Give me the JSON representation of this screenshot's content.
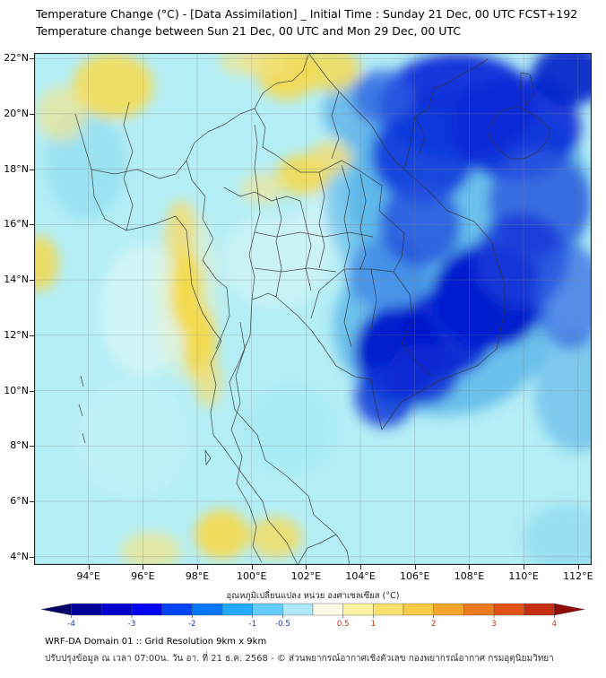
{
  "title": {
    "line1": "Temperature Change (°C) - [Data Assimilation] _ Initial Time : Sunday 21 Dec, 00 UTC FCST+192",
    "line2": "Temperature change between Sun 21 Dec, 00 UTC and Mon 29 Dec, 00 UTC"
  },
  "map": {
    "lat_ticks": [
      "22°N",
      "20°N",
      "18°N",
      "16°N",
      "14°N",
      "12°N",
      "10°N",
      "8°N",
      "6°N",
      "4°N"
    ],
    "lat_values": [
      22,
      20,
      18,
      16,
      14,
      12,
      10,
      8,
      6,
      4
    ],
    "lon_ticks": [
      "94°E",
      "96°E",
      "98°E",
      "100°E",
      "102°E",
      "104°E",
      "106°E",
      "108°E",
      "110°E",
      "112°E"
    ],
    "lon_values": [
      94,
      96,
      98,
      100,
      102,
      104,
      106,
      108,
      110,
      112
    ],
    "lon_range": [
      92.0,
      112.5
    ],
    "lat_range": [
      3.7,
      22.2
    ],
    "background_color": "#b4eef6",
    "grid_color": "rgba(130,130,130,0.38)",
    "border_color": "#222222",
    "regions": [
      {
        "lon": 93.9,
        "lat": 18.2,
        "rx": 1.5,
        "ry": 2.0,
        "color": "#93def2",
        "op": 0.75
      },
      {
        "lon": 100.9,
        "lat": 14.7,
        "rx": 2.0,
        "ry": 1.7,
        "color": "#d2f5f7",
        "op": 0.7
      },
      {
        "lon": 96.0,
        "lat": 12.9,
        "rx": 1.6,
        "ry": 2.4,
        "color": "#d8f7f8",
        "op": 0.75
      },
      {
        "lon": 95.6,
        "lat": 8.3,
        "rx": 2.2,
        "ry": 2.2,
        "color": "#c4f2f6",
        "op": 0.6
      },
      {
        "lon": 102.9,
        "lat": 16.2,
        "rx": 1.2,
        "ry": 1.0,
        "color": "#daf7f8",
        "op": 0.55
      },
      {
        "lon": 101.4,
        "lat": 8.6,
        "rx": 1.7,
        "ry": 1.6,
        "color": "#a2e9f4",
        "op": 0.6
      },
      {
        "lon": 111.6,
        "lat": 4.6,
        "rx": 1.6,
        "ry": 1.3,
        "color": "#8ed9f0",
        "op": 0.7
      },
      {
        "lon": 112.0,
        "lat": 10.0,
        "rx": 1.6,
        "ry": 2.2,
        "color": "#62b5ea",
        "op": 0.65
      },
      {
        "lon": 104.4,
        "lat": 16.9,
        "rx": 1.7,
        "ry": 2.6,
        "color": "#6fc2ec",
        "op": 0.8
      },
      {
        "lon": 103.9,
        "lat": 20.1,
        "rx": 1.3,
        "ry": 1.2,
        "color": "#5cb0e8",
        "op": 0.8
      },
      {
        "lon": 108.0,
        "lat": 17.0,
        "rx": 4.5,
        "ry": 4.0,
        "color": "#58b4e8",
        "op": 0.8
      },
      {
        "lon": 107.0,
        "lat": 12.3,
        "rx": 4.0,
        "ry": 3.2,
        "color": "#58b4e8",
        "op": 0.8
      },
      {
        "lon": 107.6,
        "lat": 20.3,
        "rx": 2.9,
        "ry": 1.9,
        "color": "#0a2ad8",
        "op": 0.95
      },
      {
        "lon": 106.3,
        "lat": 18.5,
        "rx": 1.9,
        "ry": 1.7,
        "color": "#1038dc",
        "op": 0.9
      },
      {
        "lon": 109.7,
        "lat": 19.5,
        "rx": 2.4,
        "ry": 1.9,
        "color": "#0a2ad8",
        "op": 0.9
      },
      {
        "lon": 111.7,
        "lat": 21.4,
        "rx": 1.4,
        "ry": 1.1,
        "color": "#0020c8",
        "op": 0.9
      },
      {
        "lon": 104.8,
        "lat": 20.6,
        "rx": 1.1,
        "ry": 1.0,
        "color": "#2e62e2",
        "op": 0.75
      },
      {
        "lon": 110.6,
        "lat": 16.8,
        "rx": 1.9,
        "ry": 1.9,
        "color": "#2a58e0",
        "op": 0.8
      },
      {
        "lon": 108.7,
        "lat": 13.4,
        "rx": 2.1,
        "ry": 1.9,
        "color": "#0018cc",
        "op": 0.95
      },
      {
        "lon": 107.2,
        "lat": 12.1,
        "rx": 1.7,
        "ry": 1.6,
        "color": "#001ed0",
        "op": 0.9
      },
      {
        "lon": 109.9,
        "lat": 14.7,
        "rx": 1.7,
        "ry": 1.7,
        "color": "#1638d8",
        "op": 0.85
      },
      {
        "lon": 111.7,
        "lat": 13.4,
        "rx": 1.3,
        "ry": 1.9,
        "color": "#2f63e2",
        "op": 0.7
      },
      {
        "lon": 105.4,
        "lat": 11.4,
        "rx": 1.6,
        "ry": 1.7,
        "color": "#0018cc",
        "op": 0.95
      },
      {
        "lon": 104.9,
        "lat": 9.8,
        "rx": 1.1,
        "ry": 1.1,
        "color": "#1136d8",
        "op": 0.85
      },
      {
        "lon": 106.3,
        "lat": 10.6,
        "rx": 1.3,
        "ry": 1.1,
        "color": "#0c2cd4",
        "op": 0.85
      },
      {
        "lon": 105.0,
        "lat": 14.2,
        "rx": 1.5,
        "ry": 1.3,
        "color": "#3f86e6",
        "op": 0.75
      },
      {
        "lon": 106.2,
        "lat": 16.0,
        "rx": 1.5,
        "ry": 1.5,
        "color": "#2450de",
        "op": 0.8
      },
      {
        "lon": 97.6,
        "lat": 13.5,
        "rx": 1.2,
        "ry": 3.2,
        "color": "#ecf2c8",
        "op": 0.5
      },
      {
        "lon": 94.9,
        "lat": 21.0,
        "rx": 1.5,
        "ry": 1.2,
        "color": "#f5dc55",
        "op": 0.9
      },
      {
        "lon": 93.0,
        "lat": 20.0,
        "rx": 0.9,
        "ry": 1.0,
        "color": "#f0e48e",
        "op": 0.7
      },
      {
        "lon": 101.3,
        "lat": 21.5,
        "rx": 1.1,
        "ry": 1.0,
        "color": "#f5d94e",
        "op": 0.9
      },
      {
        "lon": 100.5,
        "lat": 21.9,
        "rx": 0.8,
        "ry": 0.6,
        "color": "#f1e07c",
        "op": 0.8
      },
      {
        "lon": 102.9,
        "lat": 21.6,
        "rx": 1.1,
        "ry": 0.8,
        "color": "#f3da55",
        "op": 0.85
      },
      {
        "lon": 99.6,
        "lat": 21.9,
        "rx": 0.8,
        "ry": 0.5,
        "color": "#f2e58c",
        "op": 0.7
      },
      {
        "lon": 101.9,
        "lat": 17.8,
        "rx": 1.0,
        "ry": 0.75,
        "color": "#f5d94e",
        "op": 0.88
      },
      {
        "lon": 102.9,
        "lat": 18.4,
        "rx": 0.8,
        "ry": 0.6,
        "color": "#f2dd70",
        "op": 0.8
      },
      {
        "lon": 100.4,
        "lat": 17.3,
        "rx": 0.8,
        "ry": 0.55,
        "color": "#f2e596",
        "op": 0.7
      },
      {
        "lon": 97.4,
        "lat": 15.7,
        "rx": 0.55,
        "ry": 1.2,
        "color": "#f0dc72",
        "op": 0.85
      },
      {
        "lon": 97.6,
        "lat": 13.6,
        "rx": 0.6,
        "ry": 1.5,
        "color": "#f6d947",
        "op": 0.95
      },
      {
        "lon": 98.1,
        "lat": 11.7,
        "rx": 0.6,
        "ry": 1.4,
        "color": "#f6d947",
        "op": 0.95
      },
      {
        "lon": 98.4,
        "lat": 10.3,
        "rx": 0.5,
        "ry": 0.9,
        "color": "#efdf7e",
        "op": 0.8
      },
      {
        "lon": 92.2,
        "lat": 14.6,
        "rx": 0.7,
        "ry": 1.0,
        "color": "#f4d84e",
        "op": 0.85
      },
      {
        "lon": 98.9,
        "lat": 4.8,
        "rx": 1.0,
        "ry": 0.9,
        "color": "#f5d94e",
        "op": 0.92
      },
      {
        "lon": 100.9,
        "lat": 4.7,
        "rx": 0.95,
        "ry": 0.75,
        "color": "#f3dc62",
        "op": 0.85
      },
      {
        "lon": 96.3,
        "lat": 4.2,
        "rx": 1.1,
        "ry": 0.7,
        "color": "#f0e48c",
        "op": 0.75
      }
    ]
  },
  "colorbar": {
    "title": "อุณหภูมิเปลี่ยนแปลง หน่วย องศาเซลเซียส (°C)",
    "min": -4.5,
    "max": 4.5,
    "segments": [
      {
        "from": -4.5,
        "to": -4.0,
        "color": "#000066",
        "arrow": "left"
      },
      {
        "from": -4.0,
        "to": -3.5,
        "color": "#000099"
      },
      {
        "from": -3.5,
        "to": -3.0,
        "color": "#0000cc"
      },
      {
        "from": -3.0,
        "to": -2.5,
        "color": "#0000ff"
      },
      {
        "from": -2.5,
        "to": -2.0,
        "color": "#0044ff"
      },
      {
        "from": -2.0,
        "to": -1.5,
        "color": "#0077ff"
      },
      {
        "from": -1.5,
        "to": -1.0,
        "color": "#22aaff"
      },
      {
        "from": -1.0,
        "to": -0.5,
        "color": "#66ccff"
      },
      {
        "from": -0.5,
        "to": 0.0,
        "color": "#aee8f8"
      },
      {
        "from": 0.0,
        "to": 0.5,
        "color": "#fbfbe8"
      },
      {
        "from": 0.5,
        "to": 1.0,
        "color": "#fdf0a0"
      },
      {
        "from": 1.0,
        "to": 1.5,
        "color": "#fbe170"
      },
      {
        "from": 1.5,
        "to": 2.0,
        "color": "#f8cb47"
      },
      {
        "from": 2.0,
        "to": 2.5,
        "color": "#f5a52b"
      },
      {
        "from": 2.5,
        "to": 3.0,
        "color": "#ee7c1e"
      },
      {
        "from": 3.0,
        "to": 3.5,
        "color": "#e25318"
      },
      {
        "from": 3.5,
        "to": 4.0,
        "color": "#c52e10"
      },
      {
        "from": 4.0,
        "to": 4.5,
        "color": "#8f0a06",
        "arrow": "right"
      }
    ],
    "tick_labels": [
      "-4",
      "-3",
      "-2",
      "-1",
      "-0.5",
      "0.5",
      "1",
      "2",
      "3",
      "4"
    ],
    "tick_values": [
      -4,
      -3,
      -2,
      -1,
      -0.5,
      0.5,
      1,
      2,
      3,
      4
    ],
    "negative_label_color": "#1535c0",
    "positive_label_color": "#c03010"
  },
  "footer": {
    "line1": "WRF-DA Domain 01 :: Grid Resolution 9km x 9km",
    "line2": "ปรับปรุงข้อมูล ณ เวลา 07:00น. วัน อา. ที่ 21 ธ.ค. 2568 - © ส่วนพยากรณ์อากาศเชิงตัวเลข กองพยากรณ์อากาศ กรมอุตุนิยมวิทยา"
  }
}
